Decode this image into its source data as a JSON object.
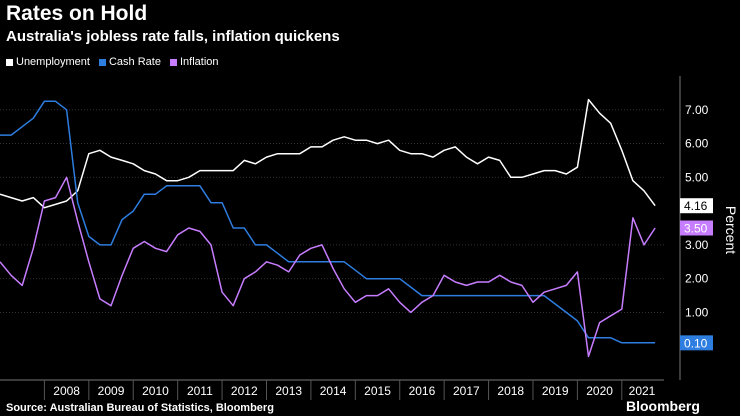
{
  "chart_data": {
    "type": "line",
    "title": "Rates on Hold",
    "subtitle": "Australia's jobless rate falls, inflation quickens",
    "ylabel": "Percent",
    "xlabel": "",
    "ylim": [
      -1,
      8
    ],
    "xlim": [
      2007.0,
      2021.95
    ],
    "y_ticks": [
      {
        "value": 7,
        "label": "7.00"
      },
      {
        "value": 6,
        "label": "6.00"
      },
      {
        "value": 5,
        "label": "5.00"
      },
      {
        "value": 3,
        "label": "3.00"
      },
      {
        "value": 2,
        "label": "2.00"
      },
      {
        "value": 1,
        "label": "1.00"
      }
    ],
    "x_ticks": [
      {
        "value": 2008,
        "label": "2008"
      },
      {
        "value": 2009,
        "label": "2009"
      },
      {
        "value": 2010,
        "label": "2010"
      },
      {
        "value": 2011,
        "label": "2011"
      },
      {
        "value": 2012,
        "label": "2012"
      },
      {
        "value": 2013,
        "label": "2013"
      },
      {
        "value": 2014,
        "label": "2014"
      },
      {
        "value": 2015,
        "label": "2015"
      },
      {
        "value": 2016,
        "label": "2016"
      },
      {
        "value": 2017,
        "label": "2017"
      },
      {
        "value": 2018,
        "label": "2018"
      },
      {
        "value": 2019,
        "label": "2019"
      },
      {
        "value": 2020,
        "label": "2020"
      },
      {
        "value": 2021,
        "label": "2021"
      }
    ],
    "series": [
      {
        "name": "Unemployment",
        "color": "#ffffff",
        "end_label": "4.16",
        "end_value": 4.16,
        "points": [
          [
            2007.0,
            4.5
          ],
          [
            2007.25,
            4.4
          ],
          [
            2007.5,
            4.3
          ],
          [
            2007.75,
            4.4
          ],
          [
            2008.0,
            4.1
          ],
          [
            2008.25,
            4.2
          ],
          [
            2008.5,
            4.3
          ],
          [
            2008.75,
            4.6
          ],
          [
            2009.0,
            5.7
          ],
          [
            2009.25,
            5.8
          ],
          [
            2009.5,
            5.6
          ],
          [
            2009.75,
            5.5
          ],
          [
            2010.0,
            5.4
          ],
          [
            2010.25,
            5.2
          ],
          [
            2010.5,
            5.1
          ],
          [
            2010.75,
            4.9
          ],
          [
            2011.0,
            4.9
          ],
          [
            2011.25,
            5.0
          ],
          [
            2011.5,
            5.2
          ],
          [
            2011.75,
            5.2
          ],
          [
            2012.0,
            5.2
          ],
          [
            2012.25,
            5.2
          ],
          [
            2012.5,
            5.5
          ],
          [
            2012.75,
            5.4
          ],
          [
            2013.0,
            5.6
          ],
          [
            2013.25,
            5.7
          ],
          [
            2013.5,
            5.7
          ],
          [
            2013.75,
            5.7
          ],
          [
            2014.0,
            5.9
          ],
          [
            2014.25,
            5.9
          ],
          [
            2014.5,
            6.1
          ],
          [
            2014.75,
            6.2
          ],
          [
            2015.0,
            6.1
          ],
          [
            2015.25,
            6.1
          ],
          [
            2015.5,
            6.0
          ],
          [
            2015.75,
            6.1
          ],
          [
            2016.0,
            5.8
          ],
          [
            2016.25,
            5.7
          ],
          [
            2016.5,
            5.7
          ],
          [
            2016.75,
            5.6
          ],
          [
            2017.0,
            5.8
          ],
          [
            2017.25,
            5.9
          ],
          [
            2017.5,
            5.6
          ],
          [
            2017.75,
            5.4
          ],
          [
            2018.0,
            5.6
          ],
          [
            2018.25,
            5.5
          ],
          [
            2018.5,
            5.0
          ],
          [
            2018.75,
            5.0
          ],
          [
            2019.0,
            5.1
          ],
          [
            2019.25,
            5.2
          ],
          [
            2019.5,
            5.2
          ],
          [
            2019.75,
            5.1
          ],
          [
            2020.0,
            5.3
          ],
          [
            2020.25,
            7.3
          ],
          [
            2020.5,
            6.9
          ],
          [
            2020.75,
            6.6
          ],
          [
            2021.0,
            5.8
          ],
          [
            2021.25,
            4.9
          ],
          [
            2021.5,
            4.6
          ],
          [
            2021.75,
            4.16
          ]
        ]
      },
      {
        "name": "Cash Rate",
        "color": "#2e7de0",
        "end_label": "0.10",
        "end_value": 0.1,
        "points": [
          [
            2007.0,
            6.25
          ],
          [
            2007.25,
            6.25
          ],
          [
            2007.5,
            6.5
          ],
          [
            2007.75,
            6.75
          ],
          [
            2008.0,
            7.25
          ],
          [
            2008.25,
            7.25
          ],
          [
            2008.5,
            7.0
          ],
          [
            2008.75,
            4.25
          ],
          [
            2009.0,
            3.25
          ],
          [
            2009.25,
            3.0
          ],
          [
            2009.5,
            3.0
          ],
          [
            2009.75,
            3.75
          ],
          [
            2010.0,
            4.0
          ],
          [
            2010.25,
            4.5
          ],
          [
            2010.5,
            4.5
          ],
          [
            2010.75,
            4.75
          ],
          [
            2011.0,
            4.75
          ],
          [
            2011.25,
            4.75
          ],
          [
            2011.5,
            4.75
          ],
          [
            2011.75,
            4.25
          ],
          [
            2012.0,
            4.25
          ],
          [
            2012.25,
            3.5
          ],
          [
            2012.5,
            3.5
          ],
          [
            2012.75,
            3.0
          ],
          [
            2013.0,
            3.0
          ],
          [
            2013.25,
            2.75
          ],
          [
            2013.5,
            2.5
          ],
          [
            2013.75,
            2.5
          ],
          [
            2014.0,
            2.5
          ],
          [
            2014.25,
            2.5
          ],
          [
            2014.5,
            2.5
          ],
          [
            2014.75,
            2.5
          ],
          [
            2015.0,
            2.25
          ],
          [
            2015.25,
            2.0
          ],
          [
            2015.5,
            2.0
          ],
          [
            2015.75,
            2.0
          ],
          [
            2016.0,
            2.0
          ],
          [
            2016.25,
            1.75
          ],
          [
            2016.5,
            1.5
          ],
          [
            2016.75,
            1.5
          ],
          [
            2017.0,
            1.5
          ],
          [
            2017.25,
            1.5
          ],
          [
            2017.5,
            1.5
          ],
          [
            2017.75,
            1.5
          ],
          [
            2018.0,
            1.5
          ],
          [
            2018.25,
            1.5
          ],
          [
            2018.5,
            1.5
          ],
          [
            2018.75,
            1.5
          ],
          [
            2019.0,
            1.5
          ],
          [
            2019.25,
            1.5
          ],
          [
            2019.5,
            1.25
          ],
          [
            2019.75,
            1.0
          ],
          [
            2020.0,
            0.75
          ],
          [
            2020.25,
            0.25
          ],
          [
            2020.5,
            0.25
          ],
          [
            2020.75,
            0.25
          ],
          [
            2021.0,
            0.1
          ],
          [
            2021.25,
            0.1
          ],
          [
            2021.5,
            0.1
          ],
          [
            2021.75,
            0.1
          ]
        ]
      },
      {
        "name": "Inflation",
        "color": "#c77dff",
        "end_label": "3.50",
        "end_value": 3.5,
        "points": [
          [
            2007.0,
            2.5
          ],
          [
            2007.25,
            2.1
          ],
          [
            2007.5,
            1.8
          ],
          [
            2007.75,
            2.9
          ],
          [
            2008.0,
            4.3
          ],
          [
            2008.25,
            4.4
          ],
          [
            2008.5,
            5.0
          ],
          [
            2008.75,
            3.7
          ],
          [
            2009.0,
            2.5
          ],
          [
            2009.25,
            1.4
          ],
          [
            2009.5,
            1.2
          ],
          [
            2009.75,
            2.1
          ],
          [
            2010.0,
            2.9
          ],
          [
            2010.25,
            3.1
          ],
          [
            2010.5,
            2.9
          ],
          [
            2010.75,
            2.8
          ],
          [
            2011.0,
            3.3
          ],
          [
            2011.25,
            3.5
          ],
          [
            2011.5,
            3.4
          ],
          [
            2011.75,
            3.0
          ],
          [
            2012.0,
            1.6
          ],
          [
            2012.25,
            1.2
          ],
          [
            2012.5,
            2.0
          ],
          [
            2012.75,
            2.2
          ],
          [
            2013.0,
            2.5
          ],
          [
            2013.25,
            2.4
          ],
          [
            2013.5,
            2.2
          ],
          [
            2013.75,
            2.7
          ],
          [
            2014.0,
            2.9
          ],
          [
            2014.25,
            3.0
          ],
          [
            2014.5,
            2.3
          ],
          [
            2014.75,
            1.7
          ],
          [
            2015.0,
            1.3
          ],
          [
            2015.25,
            1.5
          ],
          [
            2015.5,
            1.5
          ],
          [
            2015.75,
            1.7
          ],
          [
            2016.0,
            1.3
          ],
          [
            2016.25,
            1.0
          ],
          [
            2016.5,
            1.3
          ],
          [
            2016.75,
            1.5
          ],
          [
            2017.0,
            2.1
          ],
          [
            2017.25,
            1.9
          ],
          [
            2017.5,
            1.8
          ],
          [
            2017.75,
            1.9
          ],
          [
            2018.0,
            1.9
          ],
          [
            2018.25,
            2.1
          ],
          [
            2018.5,
            1.9
          ],
          [
            2018.75,
            1.8
          ],
          [
            2019.0,
            1.3
          ],
          [
            2019.25,
            1.6
          ],
          [
            2019.5,
            1.7
          ],
          [
            2019.75,
            1.8
          ],
          [
            2020.0,
            2.2
          ],
          [
            2020.25,
            -0.3
          ],
          [
            2020.5,
            0.7
          ],
          [
            2020.75,
            0.9
          ],
          [
            2021.0,
            1.1
          ],
          [
            2021.25,
            3.8
          ],
          [
            2021.5,
            3.0
          ],
          [
            2021.75,
            3.5
          ]
        ]
      }
    ]
  },
  "footer": {
    "source": "Source: Australian Bureau of Statistics, Bloomberg",
    "brand": "Bloomberg"
  }
}
